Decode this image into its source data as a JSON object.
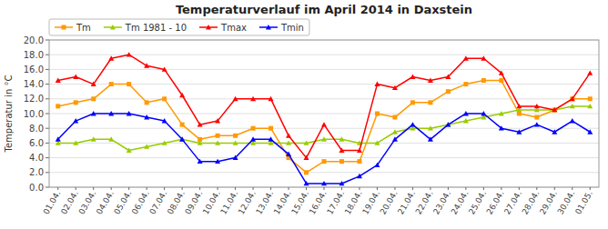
{
  "chart_data": {
    "type": "line",
    "title": "Temperaturverlauf im April 2014 in Daxstein",
    "y_label": "Temperatur in °C",
    "categories": [
      "01.04.",
      "02.04.",
      "03.04.",
      "04.04.",
      "05.04.",
      "06.04.",
      "07.04.",
      "08.04.",
      "09.04.",
      "10.04.",
      "11.04.",
      "12.04.",
      "13.04.",
      "14.04.",
      "15.04.",
      "16.04.",
      "17.04.",
      "18.04.",
      "19.04.",
      "20.04.",
      "21.04.",
      "22.04.",
      "23.04.",
      "24.04.",
      "25.04.",
      "26.04.",
      "27.04.",
      "28.04.",
      "29.04.",
      "30.04.",
      "01.05."
    ],
    "series": [
      {
        "name": "Tm",
        "color": "#FF9900",
        "marker": "square",
        "values": [
          11.0,
          11.5,
          12.0,
          14.0,
          14.0,
          11.5,
          12.0,
          8.5,
          6.5,
          7.0,
          7.0,
          8.0,
          8.0,
          4.0,
          2.0,
          3.5,
          3.5,
          3.5,
          10.0,
          9.5,
          11.5,
          11.5,
          13.0,
          14.0,
          14.5,
          14.5,
          10.0,
          9.5,
          10.5,
          12.0,
          12.0
        ]
      },
      {
        "name": "Tm 1981 - 10",
        "color": "#99CC00",
        "marker": "triangle",
        "values": [
          6.0,
          6.0,
          6.5,
          6.5,
          5.0,
          5.5,
          6.0,
          6.5,
          6.0,
          6.0,
          6.0,
          6.0,
          6.0,
          6.0,
          6.0,
          6.5,
          6.5,
          6.0,
          6.0,
          7.5,
          8.0,
          8.0,
          8.5,
          9.0,
          9.5,
          10.0,
          10.5,
          10.5,
          10.5,
          11.0,
          11.0
        ]
      },
      {
        "name": "Tmax",
        "color": "#FF0000",
        "marker": "triangle",
        "values": [
          14.5,
          15.0,
          14.0,
          17.5,
          18.0,
          16.5,
          16.0,
          12.5,
          8.5,
          9.0,
          12.0,
          12.0,
          12.0,
          7.0,
          4.0,
          8.5,
          5.0,
          5.0,
          14.0,
          13.5,
          15.0,
          14.5,
          15.0,
          17.5,
          17.5,
          15.5,
          11.0,
          11.0,
          10.5,
          12.0,
          15.5
        ]
      },
      {
        "name": "Tmin",
        "color": "#0000FF",
        "marker": "triangle",
        "values": [
          6.5,
          9.0,
          10.0,
          10.0,
          10.0,
          9.5,
          9.0,
          6.5,
          3.5,
          3.5,
          4.0,
          6.5,
          6.5,
          4.5,
          0.5,
          0.5,
          0.5,
          1.5,
          3.0,
          6.5,
          8.5,
          6.5,
          8.5,
          10.0,
          10.0,
          8.0,
          7.5,
          8.5,
          7.5,
          9.0,
          7.5
        ]
      }
    ],
    "ylim": [
      0.0,
      20.0
    ],
    "yticks": [
      {
        "value": 0.0,
        "label": "0.0"
      },
      {
        "value": 2.0,
        "label": "2.0"
      },
      {
        "value": 4.0,
        "label": "4.0"
      },
      {
        "value": 6.0,
        "label": "6.0"
      },
      {
        "value": 8.0,
        "label": "8.0"
      },
      {
        "value": 10.0,
        "label": "10.0"
      },
      {
        "value": 12.0,
        "label": "12.0"
      },
      {
        "value": 14.0,
        "label": "14.0"
      },
      {
        "value": 16.0,
        "label": "16.0"
      },
      {
        "value": 18.0,
        "label": "18.0"
      },
      {
        "value": 20.0,
        "label": "20.0"
      }
    ],
    "grid": true,
    "legend": "upper left"
  }
}
